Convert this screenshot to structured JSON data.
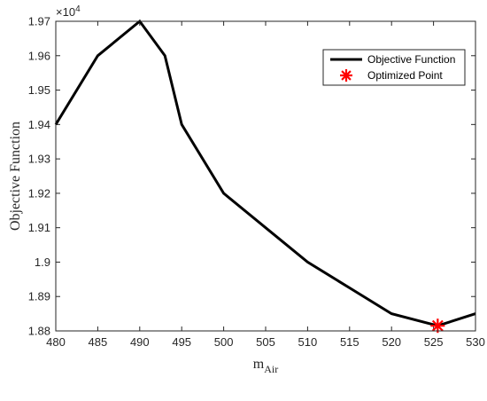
{
  "chart_data": {
    "type": "line",
    "xlabel": "m",
    "xlabel_sub": "Air",
    "ylabel": "Objective Function",
    "exponent_label": "×10",
    "exponent_power": "4",
    "xlim": [
      480,
      530
    ],
    "ylim": [
      1.88,
      1.97
    ],
    "xticks": [
      "480",
      "485",
      "490",
      "495",
      "500",
      "505",
      "510",
      "515",
      "520",
      "525",
      "530"
    ],
    "yticks": [
      "1.88",
      "1.89",
      "1.9",
      "1.91",
      "1.92",
      "1.93",
      "1.94",
      "1.95",
      "1.96",
      "1.97"
    ],
    "grid": false,
    "legend_position": "top-right",
    "series": [
      {
        "name": "Objective Function",
        "color": "#000000",
        "x": [
          480,
          485,
          490,
          493,
          495,
          500,
          505,
          510,
          515,
          520,
          525.5,
          530
        ],
        "y": [
          1.94,
          1.96,
          1.97,
          1.96,
          1.94,
          1.92,
          1.91,
          1.9,
          1.8925,
          1.885,
          1.8815,
          1.885
        ]
      },
      {
        "name": "Optimized Point",
        "color": "#ff0000",
        "marker": "asterisk",
        "x": [
          525.5
        ],
        "y": [
          1.8815
        ]
      }
    ]
  }
}
